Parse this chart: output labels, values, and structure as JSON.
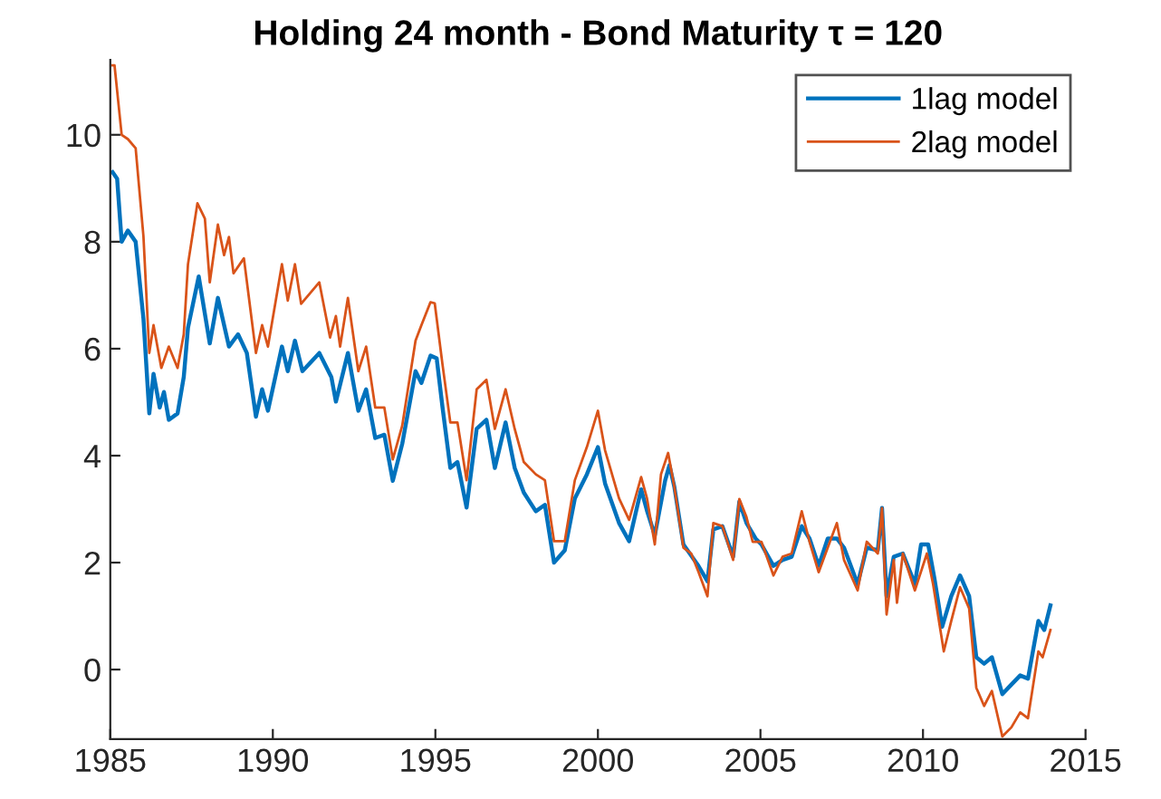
{
  "chart_data": {
    "type": "line",
    "title": "Holding 24 month - Bond Maturity τ = 120",
    "legend": "top right",
    "grid": false,
    "marker": "none",
    "line_style": "solid",
    "xlim": [
      1985,
      2015
    ],
    "xticks": [
      1985,
      1990,
      1995,
      2000,
      2005,
      2010,
      2015
    ],
    "ylim": [
      -1.3,
      11.4
    ],
    "yticks": [
      0,
      2,
      4,
      6,
      8,
      10
    ],
    "series": [
      {
        "name": "1lag model",
        "color": "#0072bd",
        "x": [
          1985.07,
          1985.21,
          1985.35,
          1985.54,
          1985.78,
          1986.02,
          1986.2,
          1986.33,
          1986.52,
          1986.65,
          1986.8,
          1987.07,
          1987.26,
          1987.39,
          1987.72,
          1988.06,
          1988.31,
          1988.65,
          1988.93,
          1989.2,
          1989.48,
          1989.67,
          1989.85,
          1990.28,
          1990.46,
          1990.68,
          1990.91,
          1991.43,
          1991.8,
          1991.94,
          1992.31,
          1992.63,
          1992.87,
          1993.15,
          1993.43,
          1993.69,
          1993.98,
          1994.39,
          1994.57,
          1994.85,
          1995.04,
          1995.22,
          1995.46,
          1995.68,
          1995.96,
          1996.27,
          1996.57,
          1996.83,
          1997.16,
          1997.44,
          1997.72,
          1998.09,
          1998.37,
          1998.65,
          1998.98,
          1999.29,
          1999.66,
          2000.0,
          2000.22,
          2000.65,
          2000.96,
          2001.33,
          2001.51,
          2001.75,
          2002.07,
          2002.2,
          2002.35,
          2002.63,
          2003.09,
          2003.37,
          2003.55,
          2003.83,
          2004.16,
          2004.35,
          2004.57,
          2004.85,
          2005.03,
          2005.4,
          2005.68,
          2005.96,
          2006.27,
          2006.51,
          2006.79,
          2007.07,
          2007.35,
          2007.57,
          2007.99,
          2008.27,
          2008.61,
          2008.74,
          2008.88,
          2009.1,
          2009.38,
          2009.75,
          2009.94,
          2010.16,
          2010.35,
          2010.59,
          2010.87,
          2011.14,
          2011.42,
          2011.64,
          2011.88,
          2012.12,
          2012.44,
          2012.72,
          2012.99,
          2013.23,
          2013.55,
          2013.73,
          2013.92
        ],
        "values": [
          9.3,
          9.18,
          8.0,
          8.21,
          8.0,
          6.56,
          4.79,
          5.53,
          4.9,
          5.19,
          4.67,
          4.79,
          5.47,
          6.39,
          7.35,
          6.1,
          6.95,
          6.04,
          6.27,
          5.92,
          4.73,
          5.24,
          4.84,
          6.04,
          5.58,
          6.15,
          5.58,
          5.92,
          5.47,
          5.01,
          5.92,
          4.84,
          5.24,
          4.33,
          4.39,
          3.53,
          4.22,
          5.58,
          5.36,
          5.87,
          5.82,
          4.9,
          3.77,
          3.88,
          3.03,
          4.5,
          4.67,
          3.77,
          4.62,
          3.77,
          3.31,
          2.96,
          3.08,
          2.0,
          2.23,
          3.2,
          3.65,
          4.16,
          3.48,
          2.74,
          2.4,
          3.37,
          2.97,
          2.51,
          3.54,
          3.82,
          3.42,
          2.34,
          1.94,
          1.65,
          2.62,
          2.68,
          2.11,
          3.14,
          2.74,
          2.45,
          2.34,
          1.94,
          2.05,
          2.11,
          2.68,
          2.45,
          1.94,
          2.45,
          2.45,
          2.28,
          1.6,
          2.28,
          2.23,
          3.02,
          1.37,
          2.11,
          2.17,
          1.6,
          2.34,
          2.34,
          1.71,
          0.8,
          1.37,
          1.76,
          1.37,
          0.23,
          0.11,
          0.23,
          -0.46,
          -0.28,
          -0.11,
          -0.17,
          0.91,
          0.74,
          1.2
        ]
      },
      {
        "name": "2lag model",
        "color": "#d95319",
        "x": [
          1985.07,
          1985.13,
          1985.35,
          1985.54,
          1985.78,
          1986.02,
          1986.2,
          1986.33,
          1986.57,
          1986.8,
          1987.07,
          1987.26,
          1987.39,
          1987.68,
          1987.91,
          1988.06,
          1988.31,
          1988.5,
          1988.65,
          1988.79,
          1989.11,
          1989.48,
          1989.67,
          1989.85,
          1990.28,
          1990.46,
          1990.68,
          1990.87,
          1991.43,
          1991.76,
          1991.94,
          1992.07,
          1992.31,
          1992.63,
          1992.87,
          1993.15,
          1993.43,
          1993.69,
          1993.98,
          1994.39,
          1994.57,
          1994.85,
          1994.98,
          1995.22,
          1995.46,
          1995.68,
          1995.96,
          1996.27,
          1996.57,
          1996.83,
          1997.16,
          1997.44,
          1997.72,
          1998.09,
          1998.37,
          1998.65,
          1998.98,
          1999.29,
          1999.66,
          2000.0,
          2000.22,
          2000.65,
          2000.96,
          2001.33,
          2001.51,
          2001.75,
          2001.94,
          2002.16,
          2002.35,
          2002.63,
          2002.87,
          2003.09,
          2003.37,
          2003.55,
          2003.83,
          2004.16,
          2004.35,
          2004.57,
          2004.76,
          2005.03,
          2005.4,
          2005.68,
          2005.96,
          2006.27,
          2006.51,
          2006.79,
          2007.07,
          2007.35,
          2007.57,
          2007.99,
          2008.27,
          2008.61,
          2008.74,
          2008.88,
          2009.1,
          2009.2,
          2009.38,
          2009.75,
          2010.12,
          2010.31,
          2010.64,
          2010.87,
          2011.14,
          2011.42,
          2011.64,
          2011.88,
          2012.12,
          2012.44,
          2012.72,
          2012.99,
          2013.23,
          2013.55,
          2013.68,
          2013.92
        ],
        "values": [
          11.3,
          11.3,
          10.0,
          9.92,
          9.75,
          8.1,
          5.92,
          6.44,
          5.64,
          6.04,
          5.64,
          6.27,
          7.58,
          8.72,
          8.43,
          7.24,
          8.32,
          7.75,
          8.09,
          7.41,
          7.69,
          5.92,
          6.44,
          6.04,
          7.58,
          6.9,
          7.58,
          6.84,
          7.24,
          6.21,
          6.61,
          6.04,
          6.95,
          5.58,
          6.04,
          4.9,
          4.9,
          3.93,
          4.56,
          6.15,
          6.44,
          6.87,
          6.85,
          5.7,
          4.62,
          4.62,
          3.54,
          5.24,
          5.42,
          4.5,
          5.24,
          4.5,
          3.88,
          3.65,
          3.54,
          2.4,
          2.4,
          3.54,
          4.16,
          4.84,
          4.1,
          3.2,
          2.8,
          3.6,
          3.2,
          2.34,
          3.65,
          4.05,
          3.42,
          2.28,
          2.17,
          1.83,
          1.37,
          2.74,
          2.68,
          2.05,
          3.19,
          2.85,
          2.39,
          2.39,
          1.76,
          2.11,
          2.17,
          2.96,
          2.39,
          1.82,
          2.28,
          2.74,
          2.05,
          1.48,
          2.39,
          2.17,
          3.02,
          1.03,
          2.05,
          1.25,
          2.17,
          1.48,
          2.17,
          1.6,
          0.34,
          0.91,
          1.54,
          1.14,
          -0.34,
          -0.68,
          -0.4,
          -1.25,
          -1.08,
          -0.8,
          -0.91,
          0.34,
          0.23,
          0.74
        ]
      }
    ]
  }
}
